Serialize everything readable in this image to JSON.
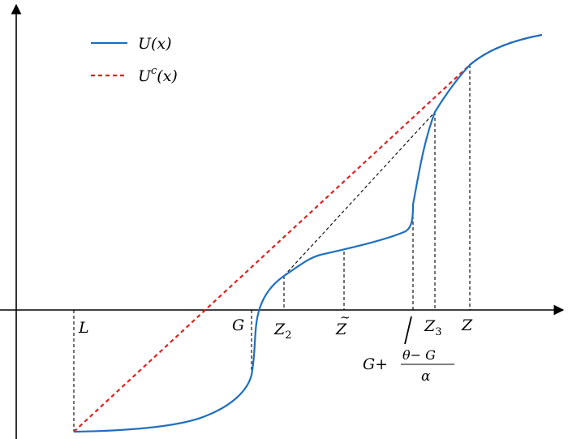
{
  "legend": {
    "u": {
      "name": "U",
      "arg": "(x)",
      "color": "#1f6fbf"
    },
    "uc": {
      "name": "U",
      "sup": "c",
      "arg": "(x)",
      "color": "#e0201e"
    }
  },
  "labels": {
    "L": "L",
    "G": "G",
    "Z2": {
      "base": "Z",
      "sub": "2"
    },
    "Ztilde": {
      "base": "Z",
      "accent": "~"
    },
    "Z3": {
      "base": "Z",
      "sub": "3"
    },
    "Z": "Z",
    "expr": {
      "prefix": "G+",
      "num": "θ− G",
      "den": "α"
    }
  },
  "colors": {
    "axes": "#000000",
    "guides": "#000000",
    "u_curve": "#1f6fbf",
    "concave_envelope": "#e0201e"
  }
}
